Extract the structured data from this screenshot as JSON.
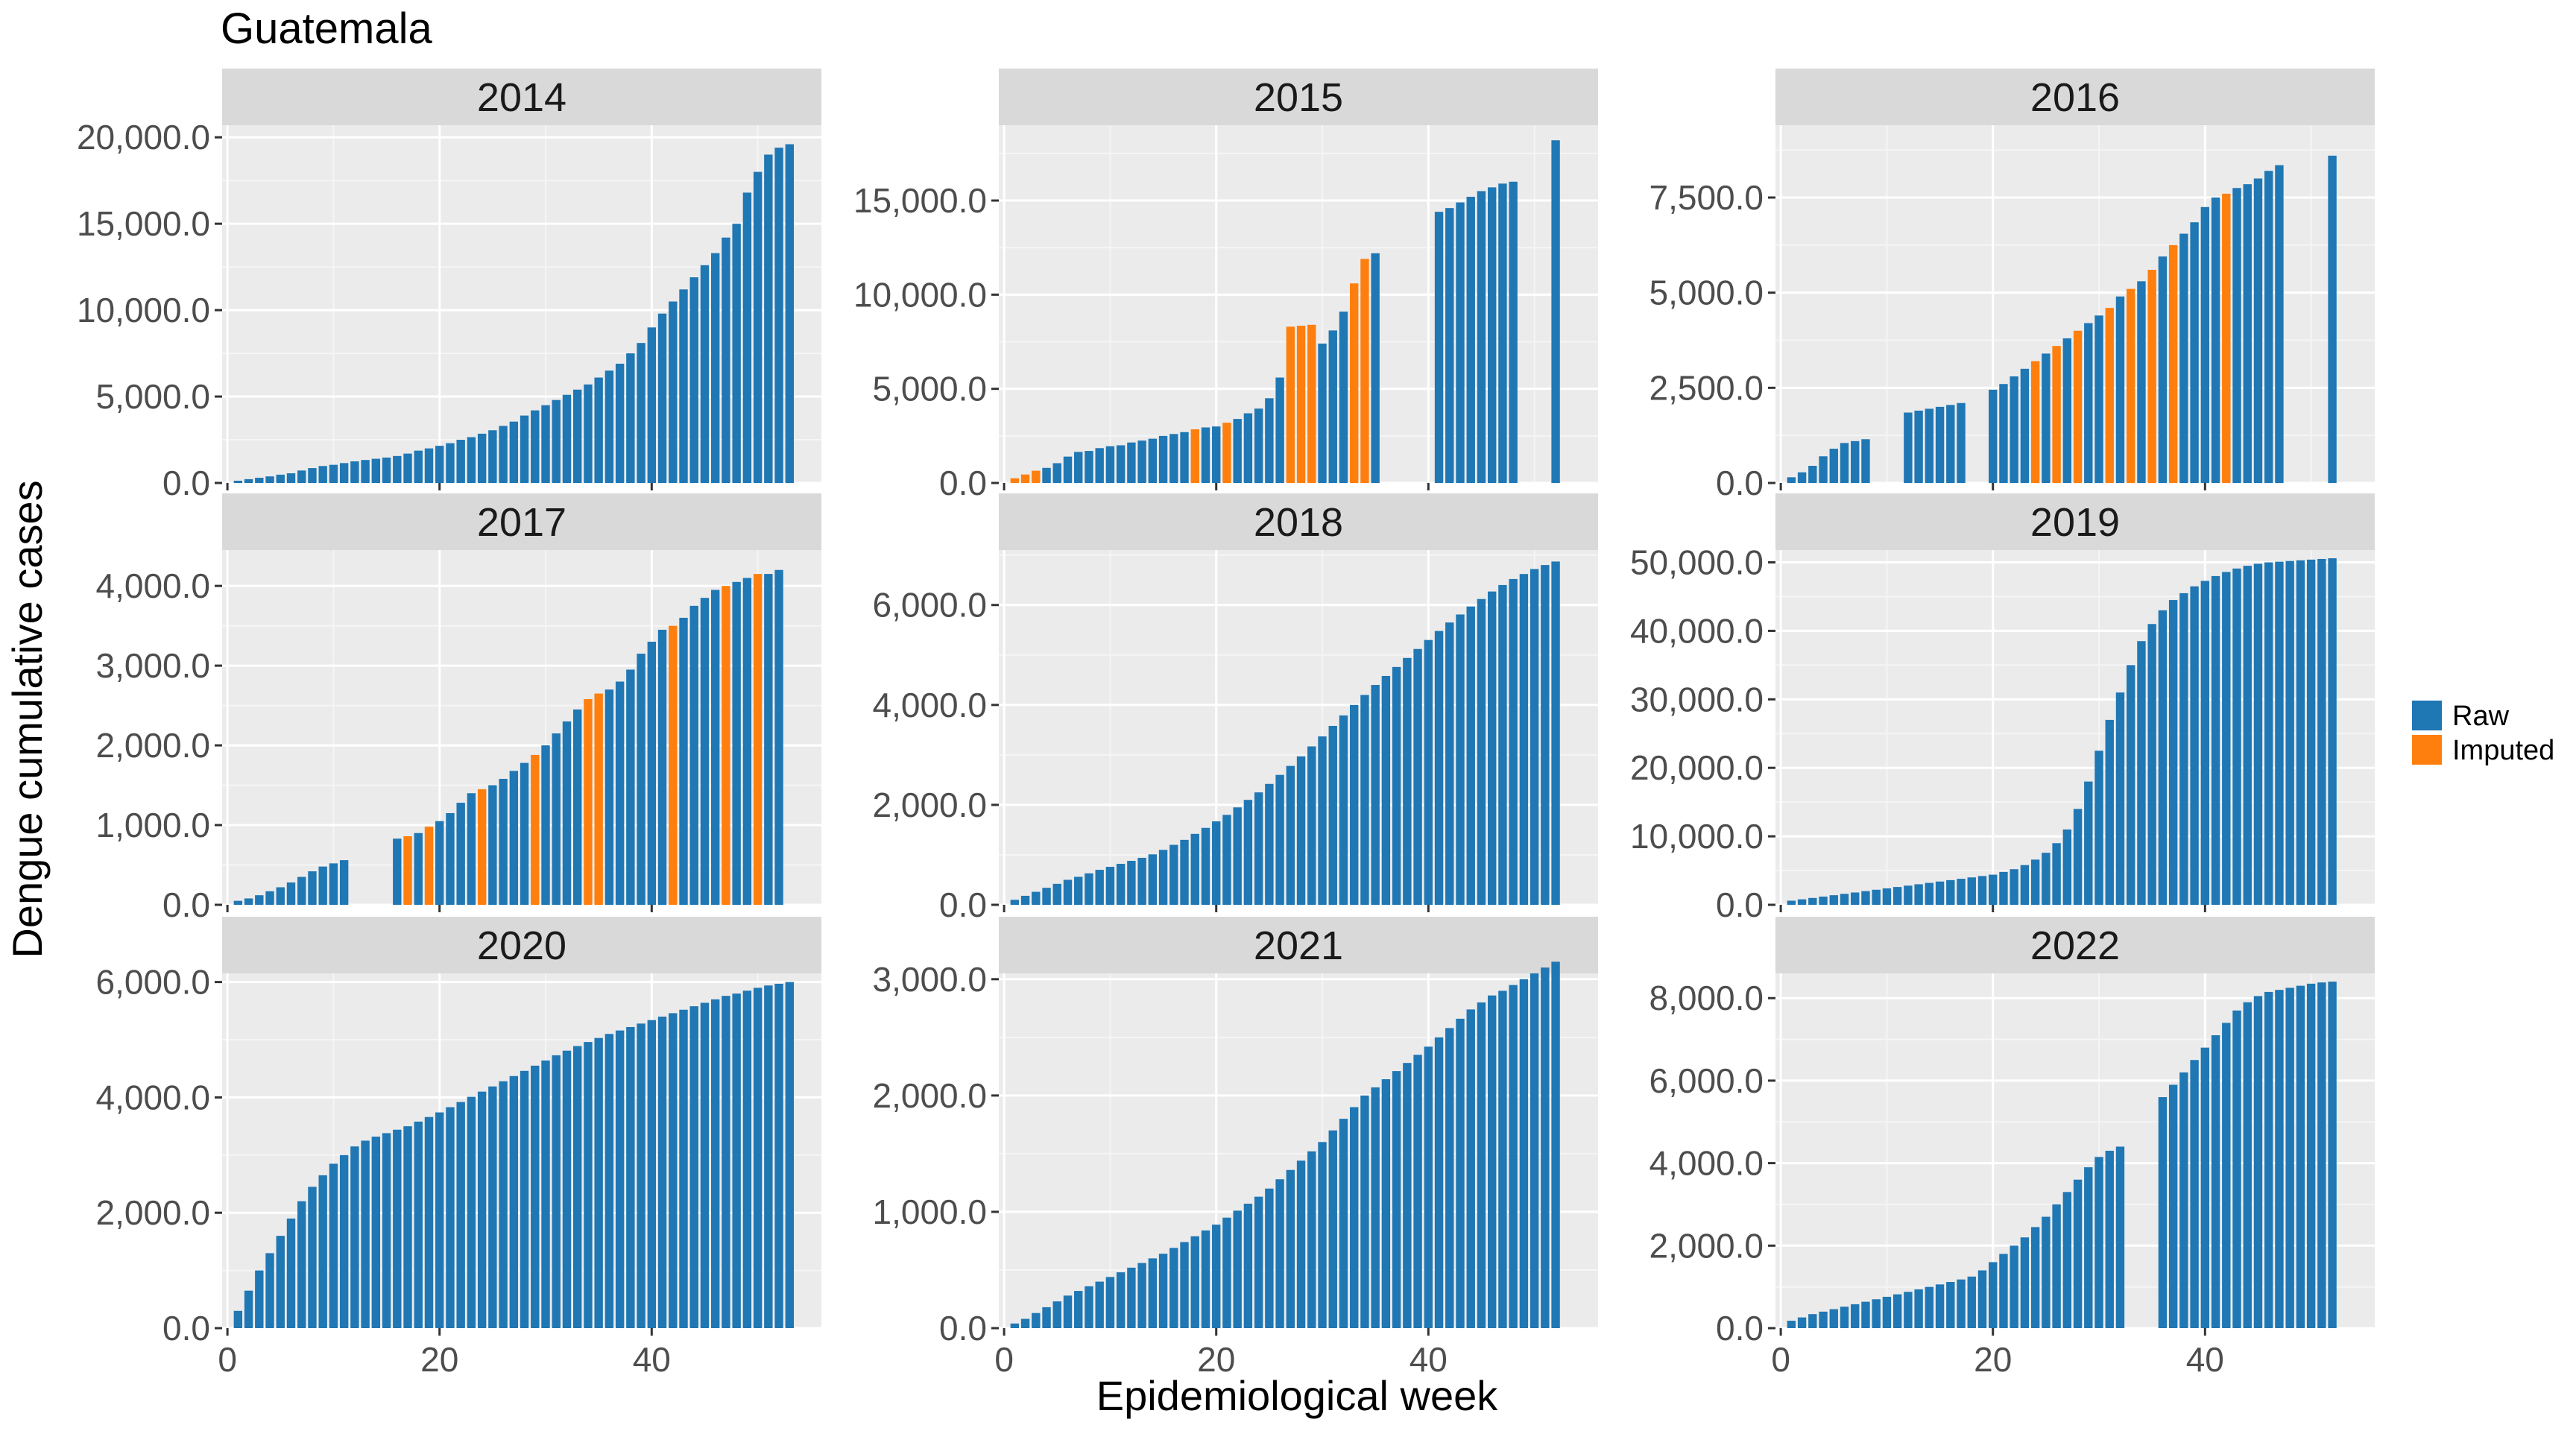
{
  "title": "Guatemala",
  "xlabel": "Epidemiological week",
  "ylabel": "Dengue cumulative cases",
  "legend": {
    "position": "right",
    "items": [
      {
        "label": "Raw",
        "color": "#1F77B4"
      },
      {
        "label": "Imputed",
        "color": "#FF7F0E"
      }
    ]
  },
  "chart_data": [
    {
      "type": "bar",
      "panel": "2014",
      "x_ticks": [
        "0",
        "20",
        "40"
      ],
      "y_ticks": [
        "0.0",
        "5,000.0",
        "10,000.0",
        "15,000.0",
        "20,000.0"
      ],
      "ylim": [
        0,
        20700
      ],
      "xlim": [
        -0.5,
        56
      ],
      "series": [
        {
          "name": "Raw",
          "weeks": [
            1,
            2,
            3,
            4,
            5,
            6,
            7,
            8,
            9,
            10,
            11,
            12,
            13,
            14,
            15,
            16,
            17,
            18,
            19,
            20,
            21,
            22,
            23,
            24,
            25,
            26,
            27,
            28,
            29,
            30,
            31,
            32,
            33,
            34,
            35,
            36,
            37,
            38,
            39,
            40,
            41,
            42,
            43,
            44,
            45,
            46,
            47,
            48,
            49,
            50,
            51,
            52,
            53
          ],
          "values": [
            130,
            220,
            300,
            380,
            480,
            560,
            720,
            860,
            980,
            1050,
            1150,
            1250,
            1330,
            1400,
            1470,
            1560,
            1700,
            1870,
            2000,
            2150,
            2300,
            2500,
            2650,
            2850,
            3050,
            3300,
            3550,
            3900,
            4200,
            4500,
            4800,
            5100,
            5400,
            5700,
            6100,
            6500,
            6900,
            7500,
            8100,
            9000,
            9800,
            10500,
            11200,
            11900,
            12600,
            13300,
            14200,
            15000,
            16800,
            18000,
            19000,
            19400,
            19600
          ]
        }
      ]
    },
    {
      "type": "bar",
      "panel": "2015",
      "x_ticks": [
        "0",
        "20",
        "40"
      ],
      "y_ticks": [
        "0.0",
        "5,000.0",
        "10,000.0",
        "15,000.0"
      ],
      "ylim": [
        0,
        19000
      ],
      "xlim": [
        -0.5,
        56
      ],
      "series": [
        {
          "name": "Raw",
          "weeks": [
            4,
            5,
            6,
            7,
            8,
            9,
            10,
            11,
            12,
            13,
            14,
            15,
            16,
            17,
            19,
            20,
            22,
            23,
            24,
            25,
            26,
            30,
            31,
            32,
            35,
            41,
            42,
            43,
            44,
            45,
            46,
            47,
            48,
            52
          ],
          "values": [
            800,
            1050,
            1400,
            1650,
            1700,
            1850,
            1950,
            2000,
            2150,
            2250,
            2350,
            2500,
            2600,
            2700,
            2950,
            3000,
            3400,
            3700,
            3950,
            4500,
            5600,
            7400,
            8100,
            9100,
            12200,
            14400,
            14600,
            14900,
            15200,
            15500,
            15700,
            15900,
            16000,
            18200
          ]
        },
        {
          "name": "Imputed",
          "weeks": [
            1,
            2,
            3,
            18,
            21,
            27,
            28,
            29,
            33,
            34
          ],
          "values": [
            250,
            450,
            650,
            2850,
            3200,
            8300,
            8350,
            8400,
            10600,
            11900
          ]
        }
      ]
    },
    {
      "type": "bar",
      "panel": "2016",
      "x_ticks": [
        "0",
        "20",
        "40"
      ],
      "y_ticks": [
        "0.0",
        "2,500.0",
        "5,000.0",
        "7,500.0"
      ],
      "ylim": [
        0,
        9400
      ],
      "xlim": [
        -0.5,
        56
      ],
      "series": [
        {
          "name": "Raw",
          "weeks": [
            1,
            2,
            3,
            4,
            5,
            6,
            7,
            8,
            12,
            13,
            14,
            15,
            16,
            17,
            20,
            21,
            22,
            23,
            25,
            27,
            29,
            30,
            32,
            34,
            36,
            38,
            39,
            40,
            41,
            43,
            44,
            45,
            46,
            47,
            52
          ],
          "values": [
            150,
            280,
            450,
            700,
            900,
            1050,
            1100,
            1150,
            1850,
            1900,
            1950,
            2000,
            2050,
            2100,
            2450,
            2600,
            2800,
            3000,
            3400,
            3800,
            4200,
            4400,
            4900,
            5300,
            5950,
            6550,
            6850,
            7250,
            7500,
            7750,
            7850,
            8000,
            8200,
            8350,
            8600
          ]
        },
        {
          "name": "Imputed",
          "weeks": [
            24,
            26,
            28,
            31,
            33,
            35,
            37,
            42
          ],
          "values": [
            3200,
            3600,
            4000,
            4600,
            5100,
            5600,
            6250,
            7600
          ]
        }
      ]
    },
    {
      "type": "bar",
      "panel": "2017",
      "x_ticks": [
        "0",
        "20",
        "40"
      ],
      "y_ticks": [
        "0.0",
        "1,000.0",
        "2,000.0",
        "3,000.0",
        "4,000.0"
      ],
      "ylim": [
        0,
        4450
      ],
      "xlim": [
        -0.5,
        56
      ],
      "series": [
        {
          "name": "Raw",
          "weeks": [
            1,
            2,
            3,
            4,
            5,
            6,
            7,
            8,
            9,
            10,
            11,
            16,
            18,
            20,
            21,
            22,
            23,
            25,
            26,
            27,
            28,
            30,
            31,
            32,
            33,
            36,
            37,
            38,
            39,
            40,
            41,
            43,
            44,
            45,
            46,
            48,
            49,
            51,
            52
          ],
          "values": [
            50,
            80,
            120,
            170,
            220,
            280,
            350,
            420,
            480,
            520,
            560,
            830,
            900,
            1050,
            1150,
            1280,
            1400,
            1500,
            1580,
            1680,
            1780,
            2000,
            2150,
            2300,
            2450,
            2700,
            2800,
            2950,
            3150,
            3300,
            3450,
            3600,
            3750,
            3850,
            3950,
            4050,
            4100,
            4150,
            4200
          ]
        },
        {
          "name": "Imputed",
          "weeks": [
            17,
            19,
            24,
            29,
            34,
            35,
            42,
            47,
            50
          ],
          "values": [
            860,
            980,
            1450,
            1880,
            2580,
            2650,
            3500,
            4000,
            4150
          ]
        }
      ]
    },
    {
      "type": "bar",
      "panel": "2018",
      "x_ticks": [
        "0",
        "20",
        "40"
      ],
      "y_ticks": [
        "0.0",
        "2,000.0",
        "4,000.0",
        "6,000.0"
      ],
      "ylim": [
        0,
        7100
      ],
      "xlim": [
        -0.5,
        56
      ],
      "series": [
        {
          "name": "Raw",
          "weeks": [
            1,
            2,
            3,
            4,
            5,
            6,
            7,
            8,
            9,
            10,
            11,
            12,
            13,
            14,
            15,
            16,
            17,
            18,
            19,
            20,
            21,
            22,
            23,
            24,
            25,
            26,
            27,
            28,
            29,
            30,
            31,
            32,
            33,
            34,
            35,
            36,
            37,
            38,
            39,
            40,
            41,
            42,
            43,
            44,
            45,
            46,
            47,
            48,
            49,
            50,
            51,
            52
          ],
          "values": [
            100,
            180,
            260,
            340,
            420,
            500,
            560,
            630,
            700,
            760,
            820,
            880,
            940,
            1010,
            1100,
            1200,
            1300,
            1420,
            1540,
            1670,
            1800,
            1950,
            2100,
            2250,
            2420,
            2600,
            2780,
            2970,
            3170,
            3370,
            3580,
            3790,
            4000,
            4200,
            4400,
            4580,
            4760,
            4940,
            5120,
            5300,
            5480,
            5650,
            5810,
            5970,
            6120,
            6270,
            6400,
            6520,
            6620,
            6720,
            6800,
            6870
          ]
        }
      ]
    },
    {
      "type": "bar",
      "panel": "2019",
      "x_ticks": [
        "0",
        "20",
        "40"
      ],
      "y_ticks": [
        "0.0",
        "10,000.0",
        "20,000.0",
        "30,000.0",
        "40,000.0",
        "50,000.0"
      ],
      "ylim": [
        0,
        51800
      ],
      "xlim": [
        -0.5,
        56
      ],
      "series": [
        {
          "name": "Raw",
          "weeks": [
            1,
            2,
            3,
            4,
            5,
            6,
            7,
            8,
            9,
            10,
            11,
            12,
            13,
            14,
            15,
            16,
            17,
            18,
            19,
            20,
            21,
            22,
            23,
            24,
            25,
            26,
            27,
            28,
            29,
            30,
            31,
            32,
            33,
            34,
            35,
            36,
            37,
            38,
            39,
            40,
            41,
            42,
            43,
            44,
            45,
            46,
            47,
            48,
            49,
            50,
            51,
            52
          ],
          "values": [
            600,
            800,
            1000,
            1200,
            1400,
            1600,
            1800,
            2000,
            2200,
            2400,
            2600,
            2800,
            3000,
            3200,
            3400,
            3600,
            3800,
            4000,
            4200,
            4400,
            4800,
            5200,
            5800,
            6600,
            7600,
            9000,
            11000,
            14000,
            18000,
            22500,
            27000,
            31000,
            35000,
            38500,
            41000,
            43000,
            44500,
            45500,
            46500,
            47300,
            48000,
            48600,
            49100,
            49500,
            49800,
            50000,
            50100,
            50200,
            50300,
            50400,
            50500,
            50600
          ]
        }
      ]
    },
    {
      "type": "bar",
      "panel": "2020",
      "x_ticks": [
        "0",
        "20",
        "40"
      ],
      "y_ticks": [
        "0.0",
        "2,000.0",
        "4,000.0",
        "6,000.0"
      ],
      "ylim": [
        0,
        6150
      ],
      "xlim": [
        -0.5,
        56
      ],
      "series": [
        {
          "name": "Raw",
          "weeks": [
            1,
            2,
            3,
            4,
            5,
            6,
            7,
            8,
            9,
            10,
            11,
            12,
            13,
            14,
            15,
            16,
            17,
            18,
            19,
            20,
            21,
            22,
            23,
            24,
            25,
            26,
            27,
            28,
            29,
            30,
            31,
            32,
            33,
            34,
            35,
            36,
            37,
            38,
            39,
            40,
            41,
            42,
            43,
            44,
            45,
            46,
            47,
            48,
            49,
            50,
            51,
            52,
            53
          ],
          "values": [
            300,
            650,
            1000,
            1300,
            1600,
            1900,
            2200,
            2450,
            2650,
            2850,
            3000,
            3150,
            3250,
            3320,
            3380,
            3440,
            3500,
            3580,
            3660,
            3740,
            3830,
            3920,
            4010,
            4100,
            4190,
            4280,
            4370,
            4460,
            4550,
            4640,
            4730,
            4810,
            4890,
            4960,
            5030,
            5100,
            5160,
            5220,
            5280,
            5340,
            5400,
            5460,
            5520,
            5580,
            5640,
            5700,
            5760,
            5800,
            5850,
            5900,
            5940,
            5970,
            6000
          ]
        }
      ]
    },
    {
      "type": "bar",
      "panel": "2021",
      "x_ticks": [
        "0",
        "20",
        "40"
      ],
      "y_ticks": [
        "0.0",
        "1,000.0",
        "2,000.0",
        "3,000.0"
      ],
      "ylim": [
        0,
        3050
      ],
      "xlim": [
        -0.5,
        56
      ],
      "series": [
        {
          "name": "Raw",
          "weeks": [
            1,
            2,
            3,
            4,
            5,
            6,
            7,
            8,
            9,
            10,
            11,
            12,
            13,
            14,
            15,
            16,
            17,
            18,
            19,
            20,
            21,
            22,
            23,
            24,
            25,
            26,
            27,
            28,
            29,
            30,
            31,
            32,
            33,
            34,
            35,
            36,
            37,
            38,
            39,
            40,
            41,
            42,
            43,
            44,
            45,
            46,
            47,
            48,
            49,
            50,
            51,
            52
          ],
          "values": [
            40,
            80,
            130,
            180,
            230,
            280,
            320,
            360,
            400,
            440,
            480,
            520,
            560,
            600,
            640,
            690,
            740,
            790,
            840,
            890,
            950,
            1010,
            1070,
            1130,
            1200,
            1280,
            1360,
            1440,
            1520,
            1600,
            1700,
            1800,
            1900,
            2000,
            2070,
            2140,
            2210,
            2280,
            2350,
            2420,
            2500,
            2580,
            2660,
            2740,
            2800,
            2860,
            2900,
            2950,
            3000,
            3050,
            3100,
            3150
          ]
        }
      ]
    },
    {
      "type": "bar",
      "panel": "2022",
      "x_ticks": [
        "0",
        "20",
        "40"
      ],
      "y_ticks": [
        "0.0",
        "2,000.0",
        "4,000.0",
        "6,000.0",
        "8,000.0"
      ],
      "ylim": [
        0,
        8600
      ],
      "xlim": [
        -0.5,
        56
      ],
      "series": [
        {
          "name": "Raw",
          "weeks": [
            1,
            2,
            3,
            4,
            5,
            6,
            7,
            8,
            9,
            10,
            11,
            12,
            13,
            14,
            15,
            16,
            17,
            18,
            19,
            20,
            21,
            22,
            23,
            24,
            25,
            26,
            27,
            28,
            29,
            30,
            31,
            32,
            36,
            37,
            38,
            39,
            40,
            41,
            42,
            43,
            44,
            45,
            46,
            47,
            48,
            49,
            50,
            51,
            52
          ],
          "values": [
            180,
            260,
            340,
            400,
            460,
            520,
            580,
            640,
            700,
            760,
            820,
            880,
            940,
            1000,
            1060,
            1120,
            1180,
            1250,
            1400,
            1600,
            1800,
            2000,
            2200,
            2450,
            2700,
            3000,
            3300,
            3600,
            3900,
            4150,
            4300,
            4400,
            5600,
            5900,
            6200,
            6500,
            6800,
            7100,
            7400,
            7700,
            7900,
            8050,
            8150,
            8200,
            8250,
            8300,
            8350,
            8380,
            8400
          ]
        }
      ]
    }
  ]
}
